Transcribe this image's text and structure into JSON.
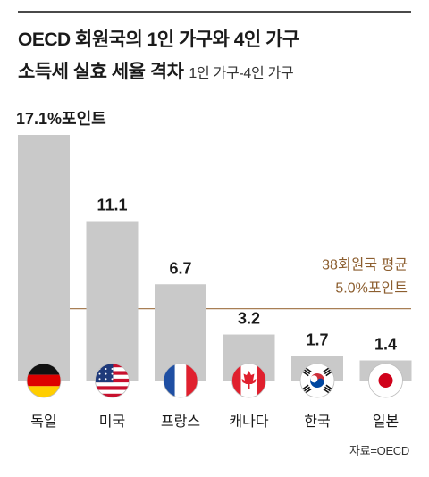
{
  "title_line1": "OECD 회원국의 1인 가구와 4인 가구",
  "title_line2": "소득세 실효 세율 격차",
  "subtitle": "1인 가구-4인 가구",
  "source": "자료=OECD",
  "colors": {
    "bar": "#c9c9c9",
    "average_line": "#a87f55",
    "average_text": "#8c5e2f",
    "text": "#1a1a1a"
  },
  "chart_data": {
    "type": "bar",
    "categories": [
      "독일",
      "미국",
      "프랑스",
      "캐나다",
      "한국",
      "일본"
    ],
    "values": [
      17.1,
      11.1,
      6.7,
      3.2,
      1.7,
      1.4
    ],
    "value_labels": [
      "17.1%포인트",
      "11.1",
      "6.7",
      "3.2",
      "1.7",
      "1.4"
    ],
    "flag_icons": [
      "germany-flag-icon",
      "usa-flag-icon",
      "france-flag-icon",
      "canada-flag-icon",
      "korea-flag-icon",
      "japan-flag-icon"
    ],
    "average": {
      "value": 5.0,
      "label_line1": "38회원국 평균",
      "label_line2": "5.0%포인트"
    },
    "ylim": [
      0,
      17.1
    ],
    "grid": false,
    "legend": "none"
  }
}
